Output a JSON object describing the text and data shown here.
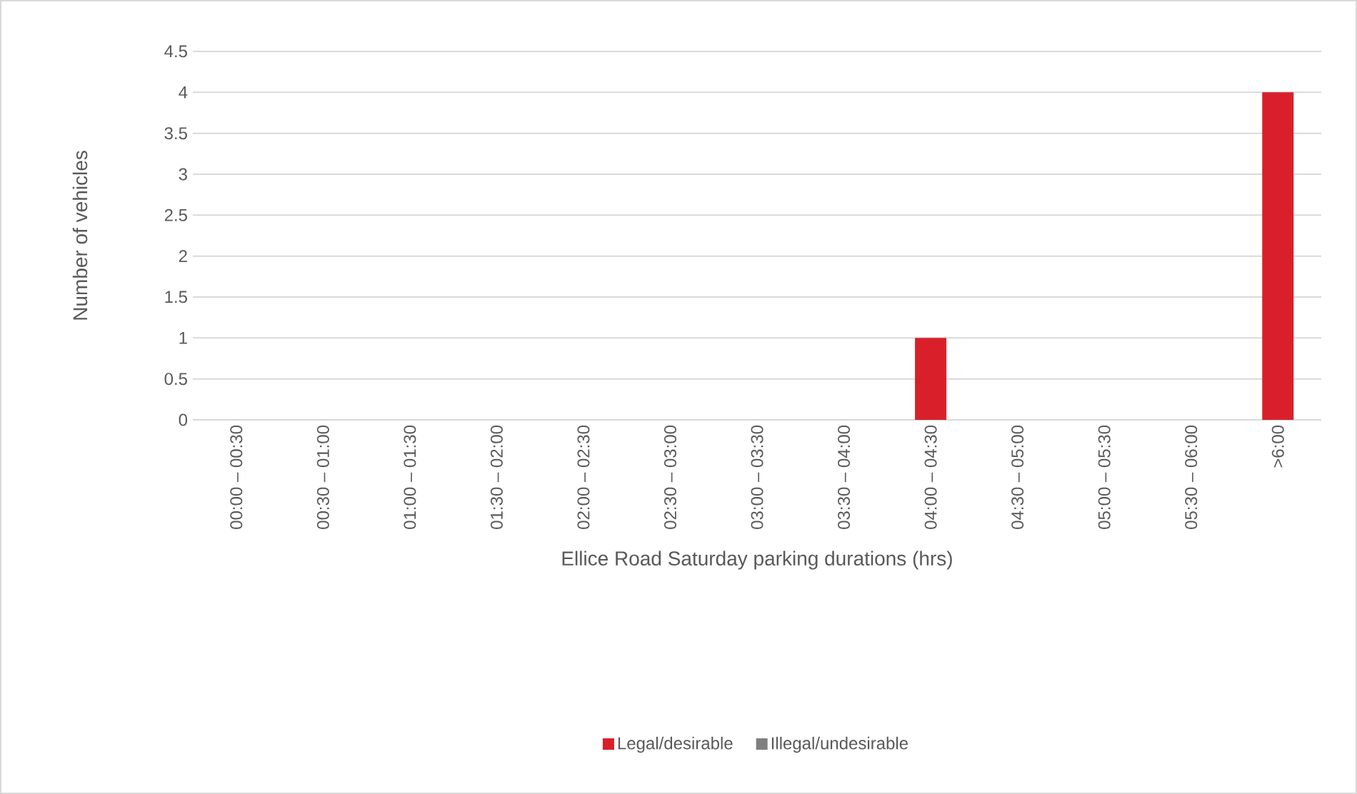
{
  "chart_data": {
    "type": "bar",
    "stacked": true,
    "xlabel": "Ellice Road Saturday parking durations (hrs)",
    "ylabel": "Number of vehicles",
    "categories": [
      "00:00 – 00:30",
      "00:30 – 01:00",
      "01:00 – 01:30",
      "01:30 – 02:00",
      "02:00 – 02:30",
      "02:30 – 03:00",
      "03:00 – 03:30",
      "03:30 – 04:00",
      "04:00 – 04:30",
      "04:30 – 05:00",
      "05:00 – 05:30",
      "05:30 – 06:00",
      ">6:00"
    ],
    "series": [
      {
        "name": "Legal/desirable",
        "color": "#d9202a",
        "values": [
          0,
          0,
          0,
          0,
          0,
          0,
          0,
          0,
          1,
          0,
          0,
          0,
          4
        ]
      },
      {
        "name": "Illegal/undesirable",
        "color": "#7f7f7f",
        "values": [
          0,
          0,
          0,
          0,
          0,
          0,
          0,
          0,
          0,
          0,
          0,
          0,
          0
        ]
      }
    ],
    "ylim": [
      0,
      4.5
    ],
    "yticks": [
      0,
      0.5,
      1,
      1.5,
      2,
      2.5,
      3,
      3.5,
      4,
      4.5
    ],
    "grid": "y",
    "legend": "bottom"
  }
}
